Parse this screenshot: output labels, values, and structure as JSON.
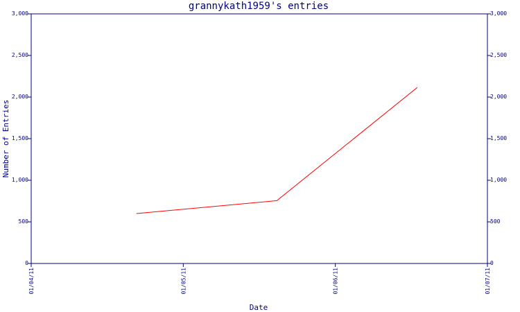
{
  "chart_data": {
    "type": "line",
    "title": "grannykath1959's entries",
    "xlabel": "Date",
    "ylabel": "Number of Entries",
    "x_ticks": [
      "01/04/11",
      "01/05/11",
      "01/06/11",
      "01/07/11"
    ],
    "y_ticks": [
      "0",
      "500",
      "1,000",
      "1,500",
      "2,000",
      "2,500",
      "3,000"
    ],
    "xlim": [
      "2011-04-01",
      "2011-07-01"
    ],
    "ylim": [
      0,
      3000
    ],
    "series": [
      {
        "points": [
          {
            "x": "2011-04-22",
            "y": 600
          },
          {
            "x": "2011-05-20",
            "y": 755
          },
          {
            "x": "2011-06-17",
            "y": 2115
          }
        ]
      }
    ],
    "y_axis_right": true,
    "grid": false,
    "colors": {
      "axis": "#000080",
      "line": "#ff0000",
      "text": "#000080"
    }
  }
}
